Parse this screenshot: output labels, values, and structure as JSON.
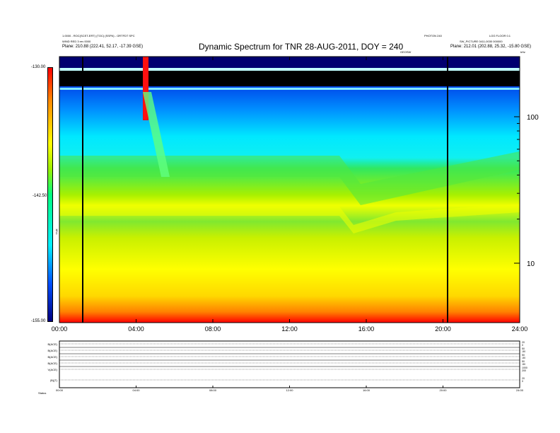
{
  "header": {
    "title": "Dynamic Spectrum for TNR 28-AUG-2011, DOY = 240",
    "meta_left_1": "1.0000 - ROC(SCET-ERT) (TOC) (SSFN) - ORTFDT SPC",
    "meta_left_2": "WIND RED 3 rev 0000",
    "meta_left_3_label": "Plane:",
    "meta_left_3_value": "210.88 (222.41, 52.17, -17.39 GSE)",
    "meta_right_top_1": "PHOTON 240",
    "meta_right_top_2": "LOG FLOOR 0.1",
    "meta_right_2": "SW_PICTURE 0411-0030 000000",
    "meta_right_3_label": "Plane:",
    "meta_right_3_value": "212.01 (202.88, 25.32, -15.80 GSE)",
    "center_marker": "GEOSW"
  },
  "colorbar": {
    "top_label": "-130.00",
    "mid_label": "-142.50",
    "bottom_label": "-155.00",
    "unit": "TNR"
  },
  "panel_corner_label": "kHz",
  "chart_data": [
    {
      "type": "heatmap",
      "title": "Dynamic Spectrum for TNR 28-AUG-2011, DOY = 240",
      "xlabel": "",
      "ylabel": "",
      "x_ticks": [
        "00:00",
        "04:00",
        "08:00",
        "12:00",
        "16:00",
        "20:00",
        "24:00"
      ],
      "x_range_hours": [
        0,
        24
      ],
      "y_scale": "log",
      "y_ticks": [
        "10",
        "100"
      ],
      "y_unit": "kHz",
      "color_scale": {
        "min": -155.0,
        "max": -130.0,
        "labels": [
          "-130.00",
          "-142.50",
          "-155.00"
        ]
      },
      "vertical_markers_hours": [
        1.2,
        20.25
      ],
      "colors": [
        "#000000",
        "#0000c8",
        "#0050ff",
        "#00e8ff",
        "#30e860",
        "#c8f000",
        "#ffff00",
        "#ff9000",
        "#ff0000"
      ]
    },
    {
      "type": "line",
      "panels": [
        {
          "label": "B(ACE)",
          "right_ticks": [
            "20",
            "0"
          ]
        },
        {
          "label": "B(ACE)",
          "right_ticks": [
            "50",
            "-50"
          ]
        },
        {
          "label": "B(ACE)",
          "right_ticks": [
            "50",
            "-50"
          ]
        },
        {
          "label": "B(ACE)",
          "right_ticks": [
            "50",
            "-50"
          ]
        },
        {
          "label": "V(ACE)",
          "right_ticks": [
            "1000",
            "200"
          ]
        },
        {
          "label": "|B|(T)",
          "right_ticks": [
            "20",
            "0"
          ]
        }
      ],
      "x_ticks": [
        "00:00",
        "04:00",
        "08:00",
        "12:00",
        "16:00",
        "20:00",
        "24:00"
      ],
      "status_label": "Status"
    }
  ]
}
